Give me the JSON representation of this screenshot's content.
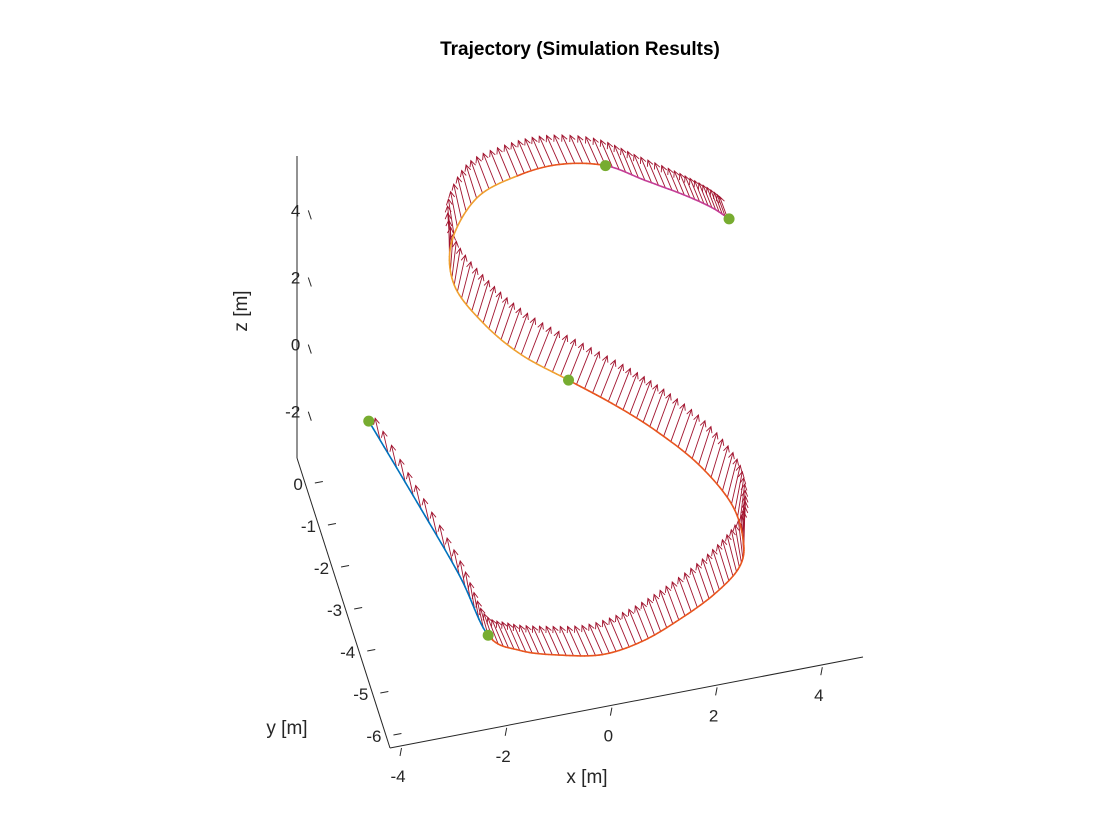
{
  "chart_data": {
    "type": "line",
    "projection": "3d",
    "title": "Trajectory (Simulation Results)",
    "xlabel": "x [m]",
    "ylabel": "y [m]",
    "zlabel": "z [m]",
    "xlim": [
      -4,
      5
    ],
    "ylim": [
      -6.5,
      0.5
    ],
    "zlim": [
      -3.5,
      5.5
    ],
    "xticks": [
      "-4",
      "-2",
      "0",
      "2",
      "4"
    ],
    "yticks": [
      "0",
      "-1",
      "-2",
      "-3",
      "-4",
      "-5",
      "-6"
    ],
    "zticks": [
      "4",
      "2",
      "0",
      "-2"
    ],
    "grid": false,
    "colors": {
      "start_segment": "#0072BD",
      "path": "#E8551F",
      "path_highlight": "#F0A030",
      "end_segment": "#C43E96",
      "arrows": "#A2142F",
      "waypoints": "#77AC30"
    },
    "waypoints": [
      {
        "x": -3.1,
        "y": -0.5,
        "z": -1.3
      },
      {
        "x": -2.1,
        "y": -5.6,
        "z": -1.6
      },
      {
        "x": 0.3,
        "y": -2.1,
        "z": 0.9
      },
      {
        "x": 1.6,
        "y": 0.3,
        "z": 3.9
      },
      {
        "x": 3.8,
        "y": -0.3,
        "z": 2.4
      }
    ],
    "series": [
      {
        "points": [
          [
            -3.1,
            -0.5,
            -1.3
          ],
          [
            -2.7,
            -2.3,
            -1.4
          ],
          [
            -2.3,
            -4.2,
            -1.5
          ],
          [
            -2.1,
            -5.6,
            -1.6
          ],
          [
            -1.6,
            -6.0,
            -1.7
          ],
          [
            -0.9,
            -6.2,
            -1.8
          ],
          [
            -0.1,
            -6.3,
            -1.9
          ],
          [
            0.7,
            -6.1,
            -2.0
          ],
          [
            1.5,
            -5.7,
            -2.1
          ],
          [
            2.3,
            -5.2,
            -2.2
          ],
          [
            2.9,
            -4.7,
            -2.2
          ],
          [
            3.1,
            -4.2,
            -2.1
          ],
          [
            3.0,
            -3.7,
            -1.6
          ],
          [
            2.5,
            -3.2,
            -0.9
          ],
          [
            1.8,
            -2.8,
            -0.2
          ],
          [
            1.1,
            -2.5,
            0.4
          ],
          [
            0.3,
            -2.1,
            0.9
          ],
          [
            -0.5,
            -1.7,
            1.4
          ],
          [
            -1.1,
            -1.2,
            1.9
          ],
          [
            -1.5,
            -0.6,
            2.4
          ],
          [
            -1.4,
            0.0,
            2.9
          ],
          [
            -0.8,
            0.5,
            3.4
          ],
          [
            0.0,
            0.6,
            3.7
          ],
          [
            0.8,
            0.6,
            3.8
          ],
          [
            1.6,
            0.3,
            3.9
          ],
          [
            2.3,
            0.1,
            3.5
          ],
          [
            3.0,
            -0.1,
            3.1
          ],
          [
            3.5,
            -0.2,
            2.7
          ],
          [
            3.8,
            -0.3,
            2.4
          ]
        ]
      }
    ]
  }
}
